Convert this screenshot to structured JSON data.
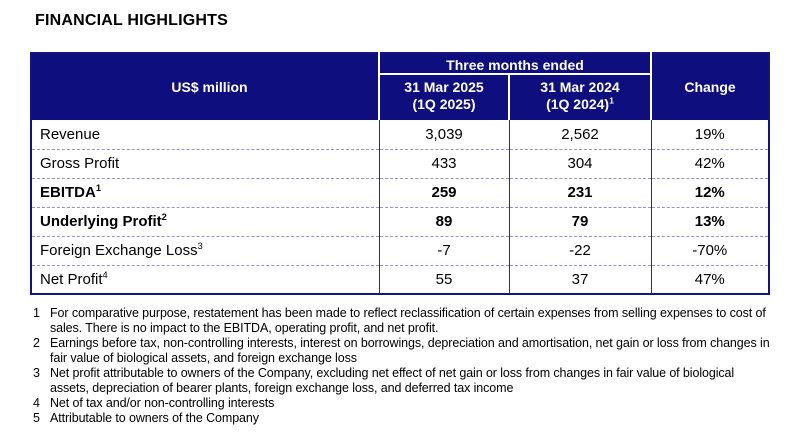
{
  "title": "FINANCIAL HIGHLIGHTS",
  "table": {
    "unit_label": "US$ million",
    "group_header": "Three months ended",
    "col_headers": [
      {
        "line1": "31 Mar 2025",
        "line2": "(1Q 2025)",
        "sup": ""
      },
      {
        "line1": "31 Mar 2024",
        "line2": "(1Q 2024)",
        "sup": "1"
      }
    ],
    "change_header": "Change",
    "rows": [
      {
        "label": "Revenue",
        "sup": "",
        "bold": false,
        "v2025": "3,039",
        "v2024": "2,562",
        "change": "19%"
      },
      {
        "label": "Gross Profit",
        "sup": "",
        "bold": false,
        "v2025": "433",
        "v2024": "304",
        "change": "42%"
      },
      {
        "label": "EBITDA",
        "sup": "1",
        "bold": true,
        "v2025": "259",
        "v2024": "231",
        "change": "12%"
      },
      {
        "label": "Underlying Profit",
        "sup": "2",
        "bold": true,
        "v2025": "89",
        "v2024": "79",
        "change": "13%"
      },
      {
        "label": "Foreign Exchange Loss",
        "sup": "3",
        "bold": false,
        "v2025": "-7",
        "v2024": "-22",
        "change": "-70%"
      },
      {
        "label": "Net Profit",
        "sup": "4",
        "bold": false,
        "v2025": "55",
        "v2024": "37",
        "change": "47%"
      }
    ]
  },
  "footnotes": [
    {
      "num": "1",
      "text": "For comparative purpose, restatement has been made to reflect reclassification of certain expenses from selling expenses to cost of sales. There is no impact to the EBITDA, operating profit, and net profit."
    },
    {
      "num": "2",
      "text": "Earnings before tax, non-controlling interests, interest on borrowings, depreciation and amortisation, net gain or loss from changes in fair value of biological assets, and foreign exchange loss"
    },
    {
      "num": "3",
      "text": "Net profit attributable to owners of the Company, excluding net effect of net gain or loss from changes in fair value of biological assets, depreciation of bearer plants, foreign exchange loss, and deferred tax income"
    },
    {
      "num": "4",
      "text": "Net of tax and/or non-controlling interests"
    },
    {
      "num": "5",
      "text": "Attributable to owners of the Company"
    }
  ],
  "colors": {
    "header_bg": "#0e0e7e",
    "header_text": "#ffffff",
    "outer_border": "#14147e",
    "column_divider": "#2b2b8c",
    "row_divider": "#9494c8",
    "body_text": "#000000"
  }
}
